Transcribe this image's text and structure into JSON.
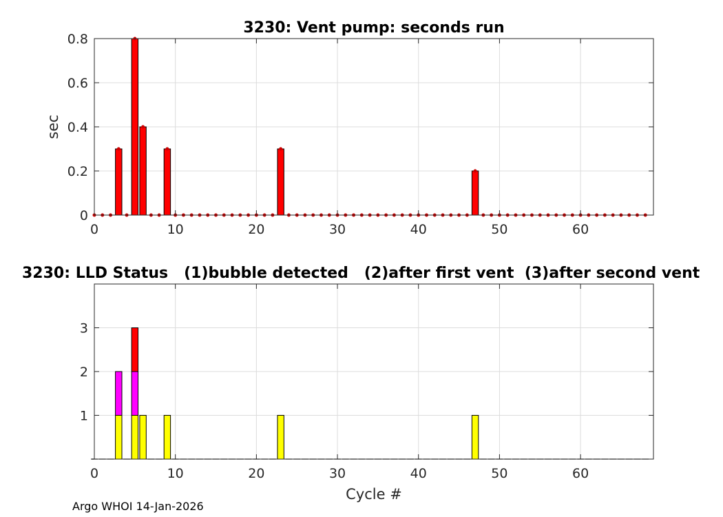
{
  "chart_data": [
    {
      "type": "bar",
      "title": "3230: Vent pump: seconds run",
      "ylabel": "sec",
      "xlabel": "",
      "xlim": [
        0,
        69
      ],
      "ylim": [
        0,
        0.8
      ],
      "xticks": [
        0,
        10,
        20,
        30,
        40,
        50,
        60
      ],
      "xtick_labels": [
        "0",
        "10",
        "20",
        "30",
        "40",
        "50",
        "60"
      ],
      "yticks": [
        0,
        0.2,
        0.4,
        0.6,
        0.8
      ],
      "ytick_labels": [
        "0",
        "0.2",
        "0.4",
        "0.6",
        "0.8"
      ],
      "grid": true,
      "bar_color": "#ff0000",
      "marker_color": "#cc0000",
      "x": [
        0,
        1,
        2,
        3,
        4,
        5,
        6,
        7,
        8,
        9,
        10,
        11,
        12,
        13,
        14,
        15,
        16,
        17,
        18,
        19,
        20,
        21,
        22,
        23,
        24,
        25,
        26,
        27,
        28,
        29,
        30,
        31,
        32,
        33,
        34,
        35,
        36,
        37,
        38,
        39,
        40,
        41,
        42,
        43,
        44,
        45,
        46,
        47,
        48,
        49,
        50,
        51,
        52,
        53,
        54,
        55,
        56,
        57,
        58,
        59,
        60,
        61,
        62,
        63,
        64,
        65,
        66,
        67,
        68
      ],
      "values": [
        0,
        0,
        0,
        0.3,
        0,
        0.8,
        0.4,
        0,
        0,
        0.3,
        0,
        0,
        0,
        0,
        0,
        0,
        0,
        0,
        0,
        0,
        0,
        0,
        0,
        0.3,
        0,
        0,
        0,
        0,
        0,
        0,
        0,
        0,
        0,
        0,
        0,
        0,
        0,
        0,
        0,
        0,
        0,
        0,
        0,
        0,
        0,
        0,
        0,
        0.2,
        0,
        0,
        0,
        0,
        0,
        0,
        0,
        0,
        0,
        0,
        0,
        0,
        0,
        0,
        0,
        0,
        0,
        0,
        0,
        0,
        0
      ]
    },
    {
      "type": "bar",
      "stacked": true,
      "title": "3230: LLD Status   (1)bubble detected   (2)after first vent  (3)after second vent",
      "xlabel": "Cycle #",
      "ylabel": "",
      "xlim": [
        0,
        69
      ],
      "ylim": [
        0,
        4
      ],
      "xticks": [
        0,
        10,
        20,
        30,
        40,
        50,
        60
      ],
      "xtick_labels": [
        "0",
        "10",
        "20",
        "30",
        "40",
        "50",
        "60"
      ],
      "yticks": [
        1,
        2,
        3
      ],
      "ytick_labels": [
        "1",
        "2",
        "3"
      ],
      "grid": true,
      "x": [
        0,
        1,
        2,
        3,
        4,
        5,
        6,
        7,
        8,
        9,
        10,
        11,
        12,
        13,
        14,
        15,
        16,
        17,
        18,
        19,
        20,
        21,
        22,
        23,
        24,
        25,
        26,
        27,
        28,
        29,
        30,
        31,
        32,
        33,
        34,
        35,
        36,
        37,
        38,
        39,
        40,
        41,
        42,
        43,
        44,
        45,
        46,
        47,
        48,
        49,
        50,
        51,
        52,
        53,
        54,
        55,
        56,
        57,
        58,
        59,
        60,
        61,
        62,
        63,
        64,
        65,
        66,
        67,
        68
      ],
      "series": [
        {
          "color": "#ffff00",
          "values": [
            0,
            0,
            0,
            1,
            0,
            1,
            1,
            0,
            0,
            1,
            0,
            0,
            0,
            0,
            0,
            0,
            0,
            0,
            0,
            0,
            0,
            0,
            0,
            1,
            0,
            0,
            0,
            0,
            0,
            0,
            0,
            0,
            0,
            0,
            0,
            0,
            0,
            0,
            0,
            0,
            0,
            0,
            0,
            0,
            0,
            0,
            0,
            1,
            0,
            0,
            0,
            0,
            0,
            0,
            0,
            0,
            0,
            0,
            0,
            0,
            0,
            0,
            0,
            0,
            0,
            0,
            0,
            0,
            0
          ]
        },
        {
          "color": "#ff00ff",
          "values": [
            0,
            0,
            0,
            1,
            0,
            1,
            0,
            0,
            0,
            0,
            0,
            0,
            0,
            0,
            0,
            0,
            0,
            0,
            0,
            0,
            0,
            0,
            0,
            0,
            0,
            0,
            0,
            0,
            0,
            0,
            0,
            0,
            0,
            0,
            0,
            0,
            0,
            0,
            0,
            0,
            0,
            0,
            0,
            0,
            0,
            0,
            0,
            0,
            0,
            0,
            0,
            0,
            0,
            0,
            0,
            0,
            0,
            0,
            0,
            0,
            0,
            0,
            0,
            0,
            0,
            0,
            0,
            0,
            0
          ]
        },
        {
          "color": "#ff0000",
          "values": [
            0,
            0,
            0,
            0,
            0,
            1,
            0,
            0,
            0,
            0,
            0,
            0,
            0,
            0,
            0,
            0,
            0,
            0,
            0,
            0,
            0,
            0,
            0,
            0,
            0,
            0,
            0,
            0,
            0,
            0,
            0,
            0,
            0,
            0,
            0,
            0,
            0,
            0,
            0,
            0,
            0,
            0,
            0,
            0,
            0,
            0,
            0,
            0,
            0,
            0,
            0,
            0,
            0,
            0,
            0,
            0,
            0,
            0,
            0,
            0,
            0,
            0,
            0,
            0,
            0,
            0,
            0,
            0,
            0
          ]
        }
      ]
    }
  ],
  "footer": "Argo WHOI 14-Jan-2026"
}
